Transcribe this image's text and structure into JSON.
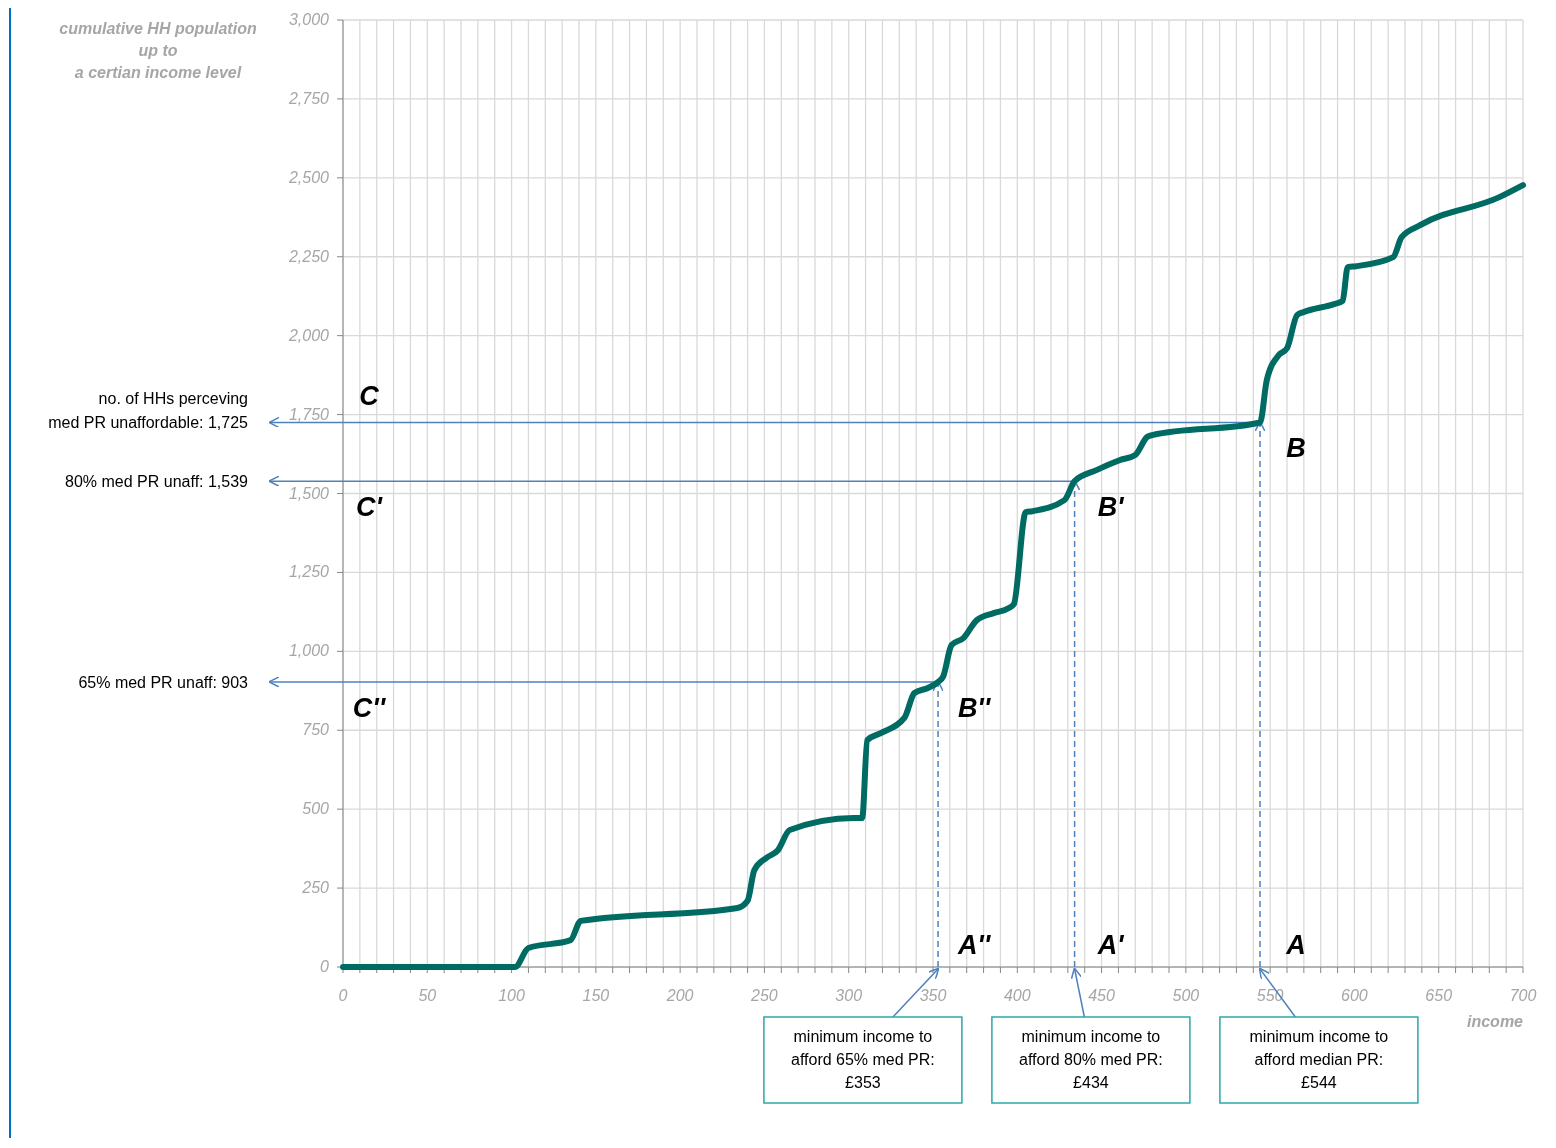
{
  "chart_data": {
    "type": "line",
    "xlabel": "income",
    "ylabel": "cumulative HH population\nup to\na certian income level",
    "x": [
      0,
      102,
      110,
      135,
      141,
      234,
      240,
      244,
      251,
      258,
      265,
      303,
      308,
      311,
      319,
      333,
      339,
      347,
      353,
      356,
      361,
      368,
      376,
      386,
      395,
      398,
      405,
      409,
      428,
      434,
      447,
      461,
      470,
      477,
      480,
      544,
      548,
      555,
      560,
      566,
      570,
      588,
      593,
      596,
      601,
      623,
      628,
      639,
      686,
      700
    ],
    "series": [
      {
        "color": "#006b63",
        "values": [
          0,
          0,
          60,
          85,
          146,
          187,
          210,
          307,
          345,
          370,
          434,
          472,
          472,
          719,
          741,
          789,
          868,
          884,
          903,
          920,
          1020,
          1042,
          1099,
          1121,
          1137,
          1150,
          1441,
          1444,
          1479,
          1539,
          1574,
          1606,
          1622,
          1679,
          1685,
          1725,
          1859,
          1938,
          1960,
          2065,
          2075,
          2100,
          2110,
          2217,
          2220,
          2249,
          2312,
          2350,
          2439,
          2477
        ]
      }
    ],
    "xlim": [
      0,
      700
    ],
    "ylim": [
      0,
      3000
    ],
    "xticks": [
      0,
      {
        "value": 10,
        "label": null
      },
      {
        "value": 20,
        "label": null
      },
      {
        "value": 30,
        "label": null
      },
      {
        "value": 40,
        "label": null
      },
      50,
      {
        "value": 60,
        "label": null
      },
      {
        "value": 70,
        "label": null
      },
      {
        "value": 80,
        "label": null
      },
      {
        "value": 90,
        "label": null
      },
      100,
      {
        "value": 110,
        "label": null
      },
      {
        "value": 120,
        "label": null
      },
      {
        "value": 130,
        "label": null
      },
      {
        "value": 140,
        "label": null
      },
      150,
      {
        "value": 160,
        "label": null
      },
      {
        "value": 170,
        "label": null
      },
      {
        "value": 180,
        "label": null
      },
      {
        "value": 190,
        "label": null
      },
      200,
      {
        "value": 210,
        "label": null
      },
      {
        "value": 220,
        "label": null
      },
      {
        "value": 230,
        "label": null
      },
      {
        "value": 240,
        "label": null
      },
      250,
      {
        "value": 260,
        "label": null
      },
      {
        "value": 270,
        "label": null
      },
      {
        "value": 280,
        "label": null
      },
      {
        "value": 290,
        "label": null
      },
      300,
      {
        "value": 310,
        "label": null
      },
      {
        "value": 320,
        "label": null
      },
      {
        "value": 330,
        "label": null
      },
      {
        "value": 340,
        "label": null
      },
      350,
      {
        "value": 360,
        "label": null
      },
      {
        "value": 370,
        "label": null
      },
      {
        "value": 380,
        "label": null
      },
      {
        "value": 390,
        "label": null
      },
      400,
      {
        "value": 410,
        "label": null
      },
      {
        "value": 420,
        "label": null
      },
      {
        "value": 430,
        "label": null
      },
      {
        "value": 440,
        "label": null
      },
      450,
      {
        "value": 460,
        "label": null
      },
      {
        "value": 470,
        "label": null
      },
      {
        "value": 480,
        "label": null
      },
      {
        "value": 490,
        "label": null
      },
      500,
      {
        "value": 510,
        "label": null
      },
      {
        "value": 520,
        "label": null
      },
      {
        "value": 530,
        "label": null
      },
      {
        "value": 540,
        "label": null
      },
      550,
      {
        "value": 560,
        "label": null
      },
      {
        "value": 570,
        "label": null
      },
      {
        "value": 580,
        "label": null
      },
      {
        "value": 590,
        "label": null
      },
      600,
      {
        "value": 610,
        "label": null
      },
      {
        "value": 620,
        "label": null
      },
      {
        "value": 630,
        "label": null
      },
      {
        "value": 640,
        "label": null
      },
      650,
      {
        "value": 660,
        "label": null
      },
      {
        "value": 670,
        "label": null
      },
      {
        "value": 680,
        "label": null
      },
      {
        "value": 690,
        "label": null
      },
      700
    ],
    "yticks": [
      {
        "value": 0,
        "label": "0"
      },
      {
        "value": 250,
        "label": "250"
      },
      {
        "value": 500,
        "label": "500"
      },
      {
        "value": 750,
        "label": "750"
      },
      {
        "value": 1000,
        "label": "1,000"
      },
      {
        "value": 1250,
        "label": "1,250"
      },
      {
        "value": 1500,
        "label": "1,500"
      },
      {
        "value": 1750,
        "label": "1,750"
      },
      {
        "value": 2000,
        "label": "2,000"
      },
      {
        "value": 2250,
        "label": "2,250"
      },
      {
        "value": 2500,
        "label": "2,500"
      },
      {
        "value": 2750,
        "label": "2,750"
      },
      {
        "value": 3000,
        "label": "3,000"
      }
    ],
    "grid": true,
    "marker": "none",
    "line_style": "solid",
    "ref_lines": [
      {
        "axis": "y",
        "value": 1725,
        "label": "no. of HHs perceving\nmed PR unaffordable: 1,725",
        "color": "#4f81bd",
        "line_style": "solid"
      },
      {
        "axis": "y",
        "value": 1539,
        "label": "80% med PR unaff: 1,539",
        "color": "#4f81bd",
        "line_style": "solid"
      },
      {
        "axis": "y",
        "value": 903,
        "label": "65% med PR unaff: 903",
        "color": "#4f81bd",
        "line_style": "solid"
      },
      {
        "axis": "x",
        "value": 353,
        "label": "minimum income to\nafford 65% med PR:\n£353",
        "color": "#4f81bd",
        "line_style": "dashed"
      },
      {
        "axis": "x",
        "value": 434,
        "label": "minimum income to\nafford 80% med PR:\n£434",
        "color": "#4f81bd",
        "line_style": "dashed"
      },
      {
        "axis": "x",
        "value": 544,
        "label": "minimum income to\nafford median PR:\n£544",
        "color": "#4f81bd",
        "line_style": "dashed"
      }
    ],
    "annotations": [
      {
        "text": "C",
        "x": 0,
        "y": 1725
      },
      {
        "text": "C'",
        "x": 0,
        "y": 1539
      },
      {
        "text": "C''",
        "x": 0,
        "y": 903
      },
      {
        "text": "B",
        "x": 544,
        "y": 1725
      },
      {
        "text": "B'",
        "x": 434,
        "y": 1539
      },
      {
        "text": "B''",
        "x": 353,
        "y": 903
      },
      {
        "text": "A''",
        "x": 353,
        "y": 0
      },
      {
        "text": "A'",
        "x": 434,
        "y": 0
      },
      {
        "text": "A",
        "x": 544,
        "y": 0
      }
    ]
  }
}
